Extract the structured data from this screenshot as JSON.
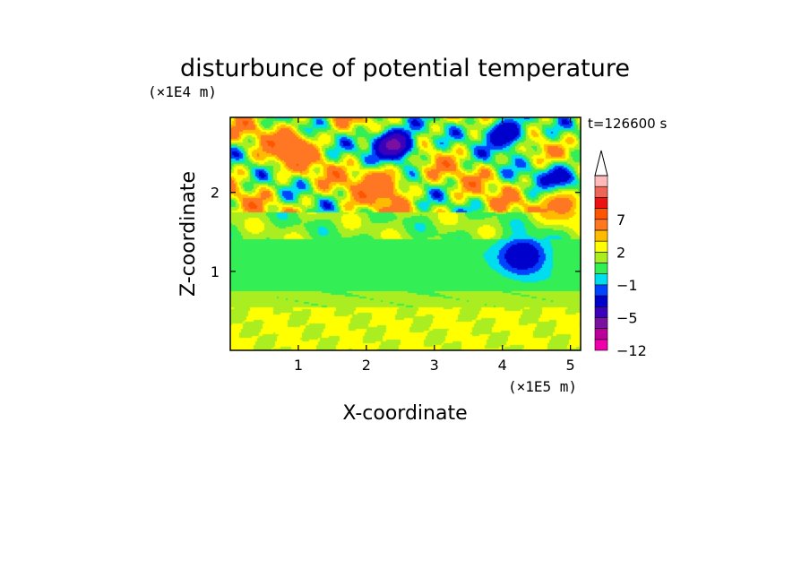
{
  "chart_data": {
    "type": "heatmap",
    "title": "disturbunce of potential temperature",
    "xlabel": "X-coordinate",
    "ylabel": "Z-coordinate",
    "x_unit": "(×1E5 m)",
    "y_unit": "(×1E4 m)",
    "time_label": "t=126600 s",
    "xlim": [
      0,
      5.15
    ],
    "ylim": [
      0,
      2.95
    ],
    "x_ticks": [
      1,
      2,
      3,
      4,
      5
    ],
    "y_ticks": [
      1,
      2
    ],
    "colorbar": {
      "levels": [
        -12,
        -9,
        -7,
        -5,
        -3,
        -2,
        -1,
        0,
        1,
        2,
        3,
        5,
        7,
        9,
        11
      ],
      "tick_labels": [
        "-12",
        "-5",
        "-1",
        "2",
        "7"
      ],
      "tick_values": [
        -12,
        -5,
        -1,
        2,
        7
      ],
      "colors": [
        "#ee00aa",
        "#bb0099",
        "#7a10a0",
        "#3a00bb",
        "#0000cc",
        "#0044ff",
        "#00ddee",
        "#33ee55",
        "#aaee22",
        "#ffff00",
        "#ffbb00",
        "#ff7722",
        "#ff5500",
        "#ee1111",
        "#ee6655",
        "#ffbbbb"
      ],
      "extend": "max"
    },
    "field_features": [
      {
        "x": 2.4,
        "z": 2.6,
        "value": -8,
        "description": "minimum"
      },
      {
        "x": 4.05,
        "z": 2.75,
        "value": -5
      },
      {
        "x": 4.85,
        "z": 2.15,
        "value": -5
      },
      {
        "x": 0.9,
        "z": 2.55,
        "value": 5
      },
      {
        "x": 2.2,
        "z": 2.1,
        "value": 5
      },
      {
        "x": 4.9,
        "z": 1.85,
        "value": 4
      },
      {
        "x": 1.5,
        "z": 1.0,
        "value": -1
      },
      {
        "x": 2.8,
        "z": 1.0,
        "value": -1
      },
      {
        "x": 4.3,
        "z": 1.2,
        "value": -5
      }
    ]
  }
}
